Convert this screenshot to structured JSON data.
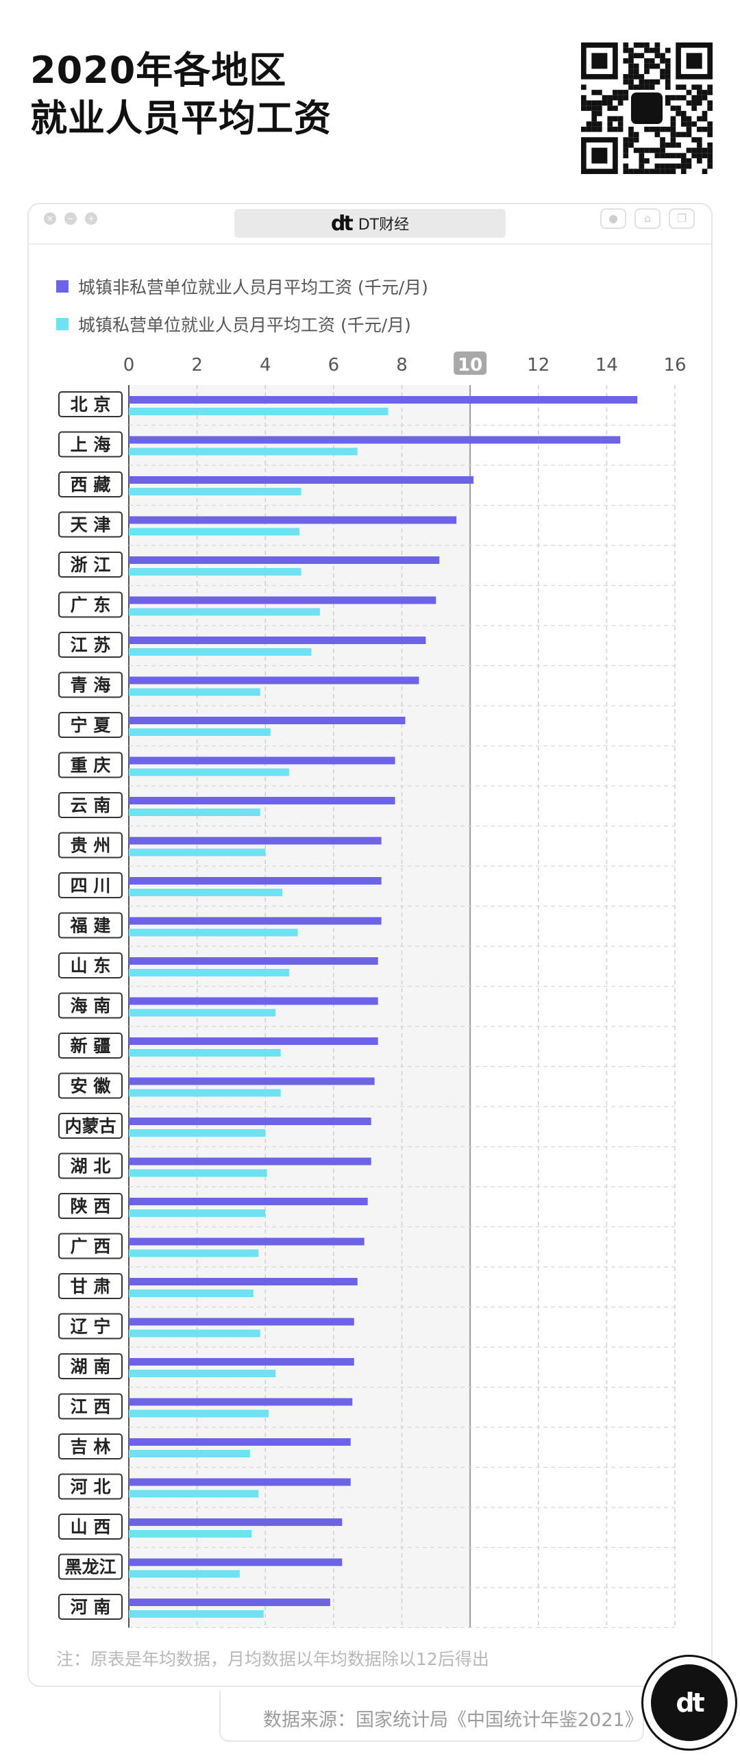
{
  "title_lines": [
    "2020年各地区",
    "就业人员平均工资"
  ],
  "window": {
    "tab_logo": "dt",
    "tab_label": "DT财经"
  },
  "legend": [
    {
      "label": "城镇非私营单位就业人员月平均工资 (千元/月)",
      "color": "#6C63E6"
    },
    {
      "label": "城镇私营单位就业人员月平均工资 (千元/月)",
      "color": "#6EE1F2"
    }
  ],
  "note": "注：原表是年均数据，月均数据以年均数据除以12后得出",
  "source": "数据来源：国家统计局《中国统计年鉴2021》",
  "badge_logo": "dt",
  "chart_data": {
    "type": "bar",
    "orientation": "horizontal",
    "xlim": [
      0,
      16
    ],
    "xticks": [
      0,
      2,
      4,
      6,
      8,
      10,
      12,
      14,
      16
    ],
    "highlight_tick": 10,
    "grid": true,
    "categories": [
      "北 京",
      "上 海",
      "西 藏",
      "天 津",
      "浙 江",
      "广 东",
      "江 苏",
      "青 海",
      "宁 夏",
      "重 庆",
      "云 南",
      "贵 州",
      "四 川",
      "福 建",
      "山 东",
      "海 南",
      "新 疆",
      "安 徽",
      "内蒙古",
      "湖 北",
      "陕 西",
      "广 西",
      "甘 肃",
      "辽 宁",
      "湖 南",
      "江 西",
      "吉 林",
      "河 北",
      "山 西",
      "黑龙江",
      "河 南"
    ],
    "series": [
      {
        "name": "城镇非私营单位就业人员月平均工资 (千元/月)",
        "color": "#6C63E6",
        "values": [
          14.9,
          14.4,
          10.1,
          9.6,
          9.1,
          9.0,
          8.7,
          8.5,
          8.1,
          7.8,
          7.8,
          7.4,
          7.4,
          7.4,
          7.3,
          7.3,
          7.3,
          7.2,
          7.1,
          7.1,
          7.0,
          6.9,
          6.7,
          6.6,
          6.6,
          6.55,
          6.5,
          6.5,
          6.25,
          6.25,
          5.9
        ]
      },
      {
        "name": "城镇私营单位就业人员月平均工资 (千元/月)",
        "color": "#6EE1F2",
        "values": [
          7.6,
          6.7,
          5.05,
          5.0,
          5.05,
          5.6,
          5.35,
          3.85,
          4.15,
          4.7,
          3.85,
          4.0,
          4.5,
          4.95,
          4.7,
          4.3,
          4.45,
          4.45,
          4.0,
          4.05,
          4.0,
          3.8,
          3.65,
          3.85,
          4.3,
          4.1,
          3.55,
          3.8,
          3.6,
          3.25,
          3.95
        ]
      }
    ]
  }
}
